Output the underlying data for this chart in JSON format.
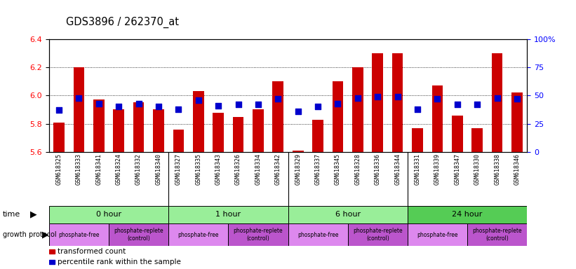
{
  "title": "GDS3896 / 262370_at",
  "samples": [
    "GSM618325",
    "GSM618333",
    "GSM618341",
    "GSM618324",
    "GSM618332",
    "GSM618340",
    "GSM618327",
    "GSM618335",
    "GSM618343",
    "GSM618326",
    "GSM618334",
    "GSM618342",
    "GSM618329",
    "GSM618337",
    "GSM618345",
    "GSM618328",
    "GSM618336",
    "GSM618344",
    "GSM618331",
    "GSM618339",
    "GSM618347",
    "GSM618330",
    "GSM618338",
    "GSM618346"
  ],
  "transformed_counts": [
    5.81,
    6.2,
    5.97,
    5.9,
    5.95,
    5.9,
    5.76,
    6.03,
    5.88,
    5.85,
    5.9,
    6.1,
    5.61,
    5.83,
    6.1,
    6.2,
    6.3,
    6.3,
    5.77,
    6.07,
    5.86,
    5.77,
    6.3,
    6.02
  ],
  "percentile_ranks": [
    37,
    48,
    43,
    40,
    43,
    40,
    38,
    46,
    41,
    42,
    42,
    47,
    36,
    40,
    43,
    48,
    49,
    49,
    38,
    47,
    42,
    42,
    48,
    47
  ],
  "ylim_left": [
    5.6,
    6.4
  ],
  "ylim_right": [
    0,
    100
  ],
  "yticks_left": [
    5.6,
    5.8,
    6.0,
    6.2,
    6.4
  ],
  "yticks_right": [
    0,
    25,
    50,
    75,
    100
  ],
  "ytick_labels_right": [
    "0",
    "25",
    "50",
    "75",
    "100%"
  ],
  "bar_color": "#cc0000",
  "dot_color": "#0000cc",
  "bar_bottom": 5.6,
  "gridlines": [
    5.8,
    6.0,
    6.2
  ],
  "time_groups": [
    {
      "label": "0 hour",
      "start": 0,
      "end": 6,
      "color": "#99ee99"
    },
    {
      "label": "1 hour",
      "start": 6,
      "end": 12,
      "color": "#99ee99"
    },
    {
      "label": "6 hour",
      "start": 12,
      "end": 18,
      "color": "#99ee99"
    },
    {
      "label": "24 hour",
      "start": 18,
      "end": 24,
      "color": "#55cc55"
    }
  ],
  "protocol_groups": [
    {
      "label": "phosphate-free",
      "start": 0,
      "end": 3,
      "color": "#dd88ee"
    },
    {
      "label": "phosphate-replete\n(control)",
      "start": 3,
      "end": 6,
      "color": "#bb55cc"
    },
    {
      "label": "phosphate-free",
      "start": 6,
      "end": 9,
      "color": "#dd88ee"
    },
    {
      "label": "phosphate-replete\n(control)",
      "start": 9,
      "end": 12,
      "color": "#bb55cc"
    },
    {
      "label": "phosphate-free",
      "start": 12,
      "end": 15,
      "color": "#dd88ee"
    },
    {
      "label": "phosphate-replete\n(control)",
      "start": 15,
      "end": 18,
      "color": "#bb55cc"
    },
    {
      "label": "phosphate-free",
      "start": 18,
      "end": 21,
      "color": "#dd88ee"
    },
    {
      "label": "phosphate-replete\n(control)",
      "start": 21,
      "end": 24,
      "color": "#bb55cc"
    }
  ],
  "label_bg_color": "#cccccc",
  "legend_items": [
    {
      "color": "#cc0000",
      "label": "transformed count"
    },
    {
      "color": "#0000cc",
      "label": "percentile rank within the sample"
    }
  ]
}
